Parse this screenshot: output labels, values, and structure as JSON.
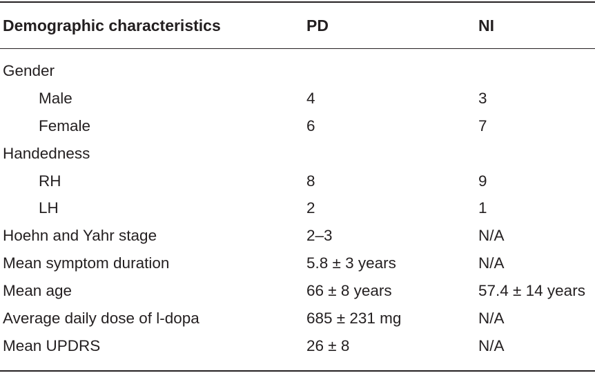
{
  "table": {
    "header": {
      "characteristics": "Demographic characteristics",
      "pd": "PD",
      "ni": "NI"
    },
    "rows": [
      {
        "label": "Gender",
        "pd": "",
        "ni": "",
        "indent": false
      },
      {
        "label": "Male",
        "pd": "4",
        "ni": "3",
        "indent": true
      },
      {
        "label": "Female",
        "pd": "6",
        "ni": "7",
        "indent": true
      },
      {
        "label": "Handedness",
        "pd": "",
        "ni": "",
        "indent": false
      },
      {
        "label": "RH",
        "pd": "8",
        "ni": "9",
        "indent": true
      },
      {
        "label": "LH",
        "pd": "2",
        "ni": "1",
        "indent": true
      },
      {
        "label": "Hoehn and Yahr stage",
        "pd": "2–3",
        "ni": "N/A",
        "indent": false
      },
      {
        "label": "Mean symptom duration",
        "pd": "5.8 ± 3 years",
        "ni": "N/A",
        "indent": false
      },
      {
        "label": "Mean age",
        "pd": "66 ± 8 years",
        "ni": "57.4 ± 14 years",
        "indent": false
      },
      {
        "label": "Average daily dose of l-dopa",
        "pd": "685 ± 231 mg",
        "ni": "N/A",
        "indent": false
      },
      {
        "label": "Mean UPDRS",
        "pd": "26 ± 8",
        "ni": "N/A",
        "indent": false
      }
    ]
  }
}
